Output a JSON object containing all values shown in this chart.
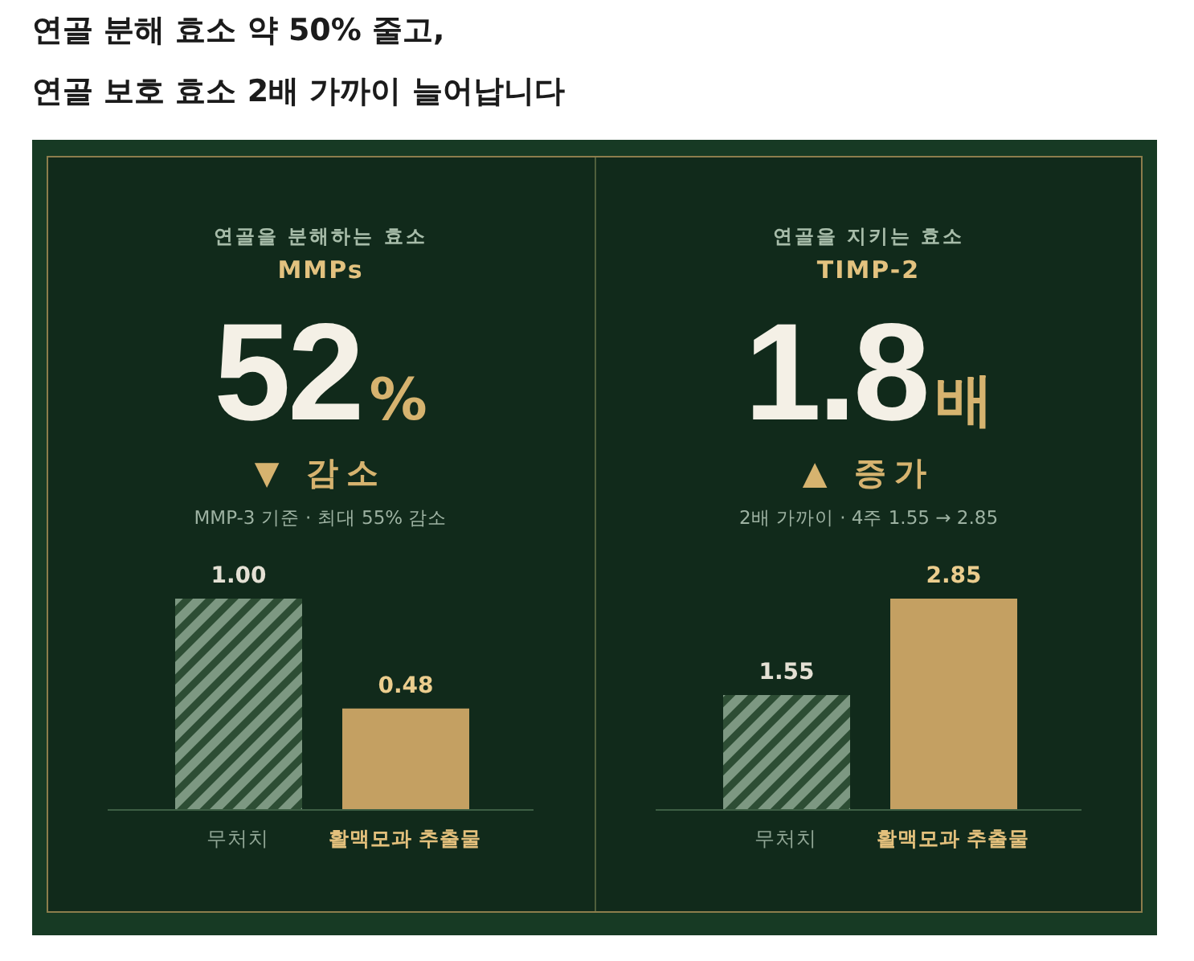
{
  "chart_data": [
    {
      "type": "bar",
      "title": "연골 분해 효소 약 50% 줄고,\n연골 보호 효소 2배 가까이 늘어납니다",
      "subtitle": "연골을 분해하는 효소",
      "annotations": [
        "MMPs",
        "52%",
        "▼ 감소",
        "MMP-3 기준 · 최대 55% 감소"
      ],
      "categories": [
        "무처치",
        "활맥모과 추출물"
      ],
      "values": [
        1.0,
        0.48
      ],
      "value_labels": [
        "1.00",
        "0.48"
      ],
      "colors": [
        "#7d9882",
        "#c4a062"
      ],
      "tick_labels": "x"
    },
    {
      "type": "bar",
      "subtitle": "연골을 지키는 효소",
      "annotations": [
        "TIMP-2",
        "1.8배",
        "▲ 증가",
        "2배 가까이 · 4주 1.55 → 2.85"
      ],
      "categories": [
        "무처치",
        "활맥모과 추출물"
      ],
      "values": [
        1.55,
        2.85
      ],
      "data_labels": true,
      "colors": [
        "#7d9882",
        "#c4a062"
      ],
      "tick_labels": "x"
    }
  ]
}
